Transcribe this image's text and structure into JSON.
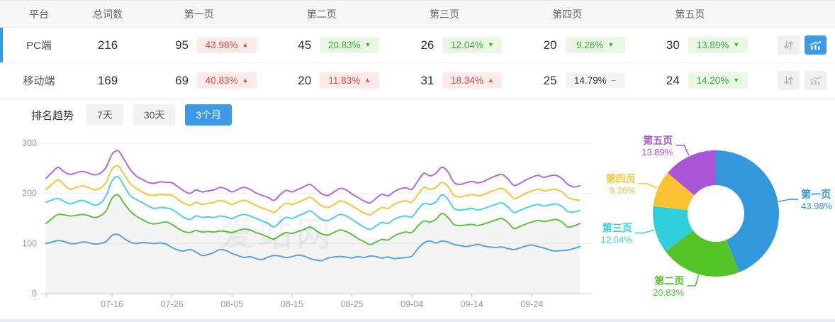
{
  "colors": {
    "accent": "#2d9ceb",
    "badge_red_text": "#e74c3c",
    "badge_red_bg": "#fbeaea",
    "badge_green_text": "#3db135",
    "badge_green_bg": "#e9f7e4",
    "badge_gray_bg": "#f4f4f4"
  },
  "table": {
    "columns": [
      "平台",
      "总词数",
      "第一页",
      "第二页",
      "第三页",
      "第四页",
      "第五页"
    ],
    "rows": [
      {
        "platform": "PC端",
        "total": "216",
        "selected": true,
        "chart_button_active": true,
        "pages": [
          {
            "count": "95",
            "pct": "43.98%",
            "arrow": "▲",
            "tone": "red"
          },
          {
            "count": "45",
            "pct": "20.83%",
            "arrow": "▼",
            "tone": "green"
          },
          {
            "count": "26",
            "pct": "12.04%",
            "arrow": "▼",
            "tone": "green"
          },
          {
            "count": "20",
            "pct": "9.26%",
            "arrow": "▼",
            "tone": "green"
          },
          {
            "count": "30",
            "pct": "13.89%",
            "arrow": "▼",
            "tone": "green"
          }
        ]
      },
      {
        "platform": "移动端",
        "total": "169",
        "selected": false,
        "chart_button_active": false,
        "pages": [
          {
            "count": "69",
            "pct": "40.83%",
            "arrow": "▲",
            "tone": "red"
          },
          {
            "count": "20",
            "pct": "11.83%",
            "arrow": "▲",
            "tone": "red"
          },
          {
            "count": "31",
            "pct": "18.34%",
            "arrow": "▲",
            "tone": "red"
          },
          {
            "count": "25",
            "pct": "14.79%",
            "arrow": "−",
            "tone": "gray"
          },
          {
            "count": "24",
            "pct": "14.20%",
            "arrow": "▼",
            "tone": "green"
          }
        ]
      }
    ]
  },
  "trend_section": {
    "title": "排名趋势",
    "tabs": [
      {
        "label": "7天",
        "active": false
      },
      {
        "label": "30天",
        "active": false
      },
      {
        "label": "3个月",
        "active": true
      }
    ]
  },
  "watermark": "爱站网",
  "chart_data": [
    {
      "type": "line",
      "title": "排名趋势 3个月",
      "ylim": [
        0,
        300
      ],
      "yticks": [
        0,
        100,
        200,
        300
      ],
      "grid": true,
      "n_points": 90,
      "tick_labels": [
        "07-16",
        "07-26",
        "08-05",
        "08-15",
        "08-25",
        "09-04",
        "09-14",
        "09-24"
      ],
      "tick_indices": [
        11,
        21,
        31,
        41,
        51,
        61,
        71,
        81
      ],
      "series": [
        {
          "name": "第一页",
          "color": "#54a3e2",
          "area": false,
          "values": [
            100,
            103,
            106,
            104,
            100,
            100,
            103,
            102,
            99,
            100,
            104,
            116,
            118,
            110,
            103,
            100,
            102,
            101,
            100,
            101,
            99,
            92,
            87,
            85,
            88,
            83,
            76,
            78,
            82,
            88,
            86,
            80,
            76,
            72,
            74,
            70,
            68,
            73,
            76,
            75,
            72,
            74,
            77,
            75,
            70,
            67,
            66,
            71,
            73,
            74,
            73,
            71,
            74,
            72,
            75,
            74,
            71,
            73,
            70,
            71,
            72,
            75,
            90,
            101,
            105,
            101,
            105,
            103,
            98,
            96,
            94,
            96,
            98,
            95,
            93,
            92,
            93,
            90,
            88,
            91,
            95,
            97,
            94,
            91,
            87,
            85,
            86,
            87,
            90,
            94
          ]
        },
        {
          "name": "第二页",
          "color": "#5fc142",
          "area": true,
          "values": [
            140,
            150,
            158,
            157,
            155,
            156,
            158,
            156,
            152,
            155,
            165,
            190,
            197,
            180,
            165,
            155,
            148,
            142,
            139,
            141,
            143,
            138,
            130,
            124,
            122,
            126,
            123,
            124,
            123,
            125,
            124,
            122,
            126,
            129,
            127,
            122,
            118,
            113,
            109,
            116,
            122,
            120,
            124,
            128,
            133,
            126,
            119,
            117,
            122,
            127,
            124,
            118,
            110,
            104,
            98,
            103,
            108,
            107,
            115,
            120,
            123,
            122,
            135,
            145,
            143,
            148,
            160,
            152,
            138,
            136,
            137,
            138,
            136,
            139,
            143,
            147,
            150,
            142,
            130,
            134,
            139,
            143,
            146,
            144,
            146,
            148,
            143,
            133,
            135,
            140
          ]
        },
        {
          "name": "第三页",
          "color": "#4bd2dc",
          "area": false,
          "values": [
            182,
            187,
            190,
            184,
            179,
            183,
            186,
            182,
            177,
            180,
            195,
            225,
            233,
            215,
            196,
            188,
            182,
            175,
            170,
            172,
            171,
            168,
            160,
            152,
            148,
            155,
            152,
            153,
            152,
            155,
            153,
            150,
            155,
            158,
            155,
            150,
            145,
            140,
            133,
            143,
            152,
            150,
            155,
            160,
            165,
            157,
            148,
            146,
            152,
            158,
            155,
            148,
            140,
            133,
            128,
            135,
            142,
            140,
            148,
            153,
            155,
            153,
            168,
            180,
            178,
            183,
            197,
            188,
            170,
            167,
            168,
            170,
            167,
            170,
            174,
            178,
            181,
            173,
            162,
            166,
            171,
            175,
            178,
            175,
            177,
            179,
            174,
            164,
            163,
            166
          ]
        },
        {
          "name": "第四页",
          "color": "#fbc337",
          "area": false,
          "values": [
            208,
            218,
            227,
            217,
            208,
            212,
            215,
            212,
            207,
            210,
            222,
            248,
            255,
            238,
            220,
            210,
            203,
            197,
            196,
            198,
            197,
            196,
            188,
            180,
            176,
            182,
            178,
            180,
            182,
            186,
            183,
            178,
            183,
            186,
            182,
            176,
            171,
            167,
            162,
            172,
            180,
            178,
            182,
            187,
            192,
            184,
            175,
            172,
            178,
            185,
            182,
            175,
            168,
            161,
            157,
            165,
            172,
            170,
            178,
            183,
            185,
            183,
            198,
            212,
            208,
            212,
            222,
            214,
            196,
            193,
            195,
            198,
            195,
            198,
            203,
            207,
            210,
            202,
            190,
            194,
            200,
            205,
            208,
            205,
            207,
            208,
            203,
            192,
            188,
            186
          ]
        },
        {
          "name": "第五页",
          "color": "#b168e1",
          "area": false,
          "values": [
            230,
            242,
            252,
            243,
            238,
            241,
            244,
            241,
            237,
            240,
            252,
            278,
            285,
            268,
            248,
            235,
            228,
            222,
            220,
            223,
            222,
            221,
            213,
            205,
            200,
            207,
            203,
            205,
            207,
            212,
            209,
            203,
            208,
            212,
            208,
            201,
            196,
            192,
            186,
            197,
            206,
            203,
            208,
            213,
            218,
            209,
            199,
            196,
            203,
            210,
            207,
            199,
            192,
            185,
            181,
            190,
            198,
            195,
            203,
            209,
            211,
            208,
            225,
            240,
            235,
            240,
            252,
            243,
            222,
            218,
            221,
            224,
            221,
            224,
            230,
            235,
            238,
            229,
            216,
            220,
            227,
            232,
            236,
            232,
            235,
            236,
            230,
            218,
            213,
            215
          ]
        }
      ]
    },
    {
      "type": "pie",
      "donut": true,
      "inner_radius_ratio": 0.45,
      "start_angle": "top",
      "direction": "clockwise",
      "labels": [
        "第一页",
        "第二页",
        "第三页",
        "第四页",
        "第五页"
      ],
      "values": [
        43.98,
        20.83,
        12.04,
        9.26,
        13.89
      ],
      "value_labels": [
        "43.98%",
        "20.83%",
        "12.04%",
        "9.26%",
        "13.89%"
      ],
      "colors": [
        "#3398db",
        "#55c427",
        "#2fd0dc",
        "#fbc332",
        "#a855d8"
      ]
    }
  ]
}
